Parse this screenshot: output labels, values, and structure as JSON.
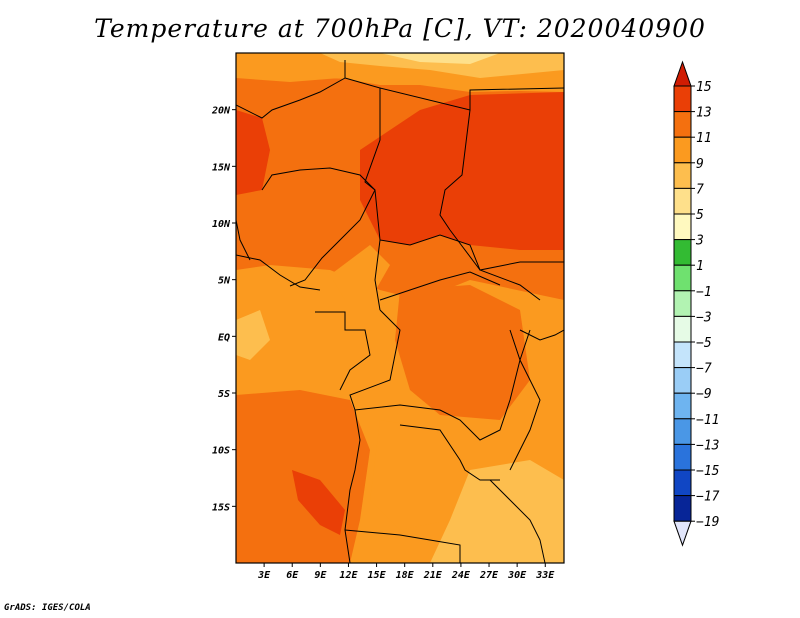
{
  "title": "Temperature at 700hPa [C], VT: 2020040900",
  "credit": "GrADS: IGES/COLA",
  "map": {
    "lon_range": [
      0,
      35
    ],
    "lat_range": [
      -20,
      25
    ],
    "x_ticks": [
      {
        "lon": 3,
        "label": "3E"
      },
      {
        "lon": 6,
        "label": "6E"
      },
      {
        "lon": 9,
        "label": "9E"
      },
      {
        "lon": 12,
        "label": "12E"
      },
      {
        "lon": 15,
        "label": "15E"
      },
      {
        "lon": 18,
        "label": "18E"
      },
      {
        "lon": 21,
        "label": "21E"
      },
      {
        "lon": 24,
        "label": "24E"
      },
      {
        "lon": 27,
        "label": "27E"
      },
      {
        "lon": 30,
        "label": "30E"
      },
      {
        "lon": 33,
        "label": "33E"
      }
    ],
    "y_ticks": [
      {
        "lat": 20,
        "label": "20N"
      },
      {
        "lat": 15,
        "label": "15N"
      },
      {
        "lat": 10,
        "label": "10N"
      },
      {
        "lat": 5,
        "label": "5N"
      },
      {
        "lat": 0,
        "label": "EQ"
      },
      {
        "lat": -5,
        "label": "5S"
      },
      {
        "lat": -10,
        "label": "10S"
      },
      {
        "lat": -15,
        "label": "15S"
      }
    ],
    "field_colors": {
      "c5": "#fee08b",
      "c7": "#fdbe4e",
      "c9": "#fb9a1f",
      "c11": "#f4700f",
      "c13": "#ea3f06"
    }
  },
  "colorbar": {
    "levels": [
      {
        "label": "15",
        "color": "#d01c03"
      },
      {
        "label": "13",
        "color": "#ea3f06"
      },
      {
        "label": "11",
        "color": "#f4700f"
      },
      {
        "label": "9",
        "color": "#fb9a1f"
      },
      {
        "label": "7",
        "color": "#fdbe4e"
      },
      {
        "label": "5",
        "color": "#fee08b"
      },
      {
        "label": "3",
        "color": "#fff9bf"
      },
      {
        "label": "1",
        "color": "#33bb33"
      },
      {
        "label": "−1",
        "color": "#6fe16f"
      },
      {
        "label": "−3",
        "color": "#b2f3b2"
      },
      {
        "label": "−5",
        "color": "#e6fbe6"
      },
      {
        "label": "−7",
        "color": "#c4e4fb"
      },
      {
        "label": "−9",
        "color": "#9acdf6"
      },
      {
        "label": "−11",
        "color": "#6eb4f0"
      },
      {
        "label": "−13",
        "color": "#4a97e6"
      },
      {
        "label": "−15",
        "color": "#2a73dc"
      },
      {
        "label": "−17",
        "color": "#1046c4"
      },
      {
        "label": "−19",
        "color": "#072597"
      }
    ],
    "bottom_color": "#e2e6fb"
  }
}
